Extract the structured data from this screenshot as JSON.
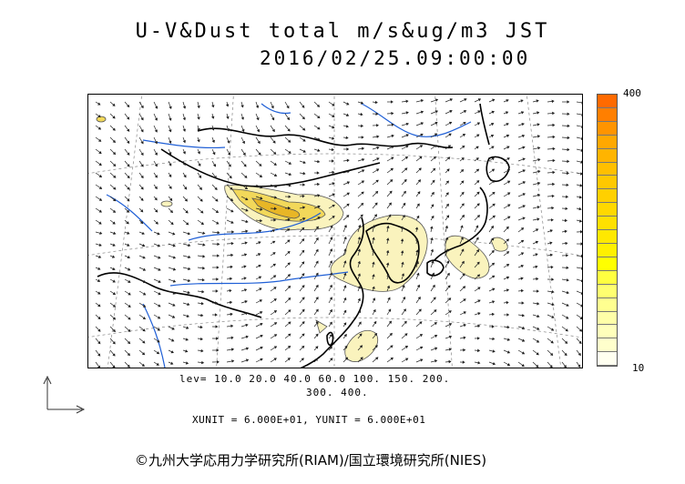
{
  "title": {
    "line1": "U-V&Dust total m/s&ug/m3 JST",
    "line2": "2016/02/25.09:00:00"
  },
  "colorbar": {
    "max_label": "400",
    "min_label": "10",
    "colors": [
      "#ff6a00",
      "#ff7f00",
      "#ff9400",
      "#ffa800",
      "#ffb400",
      "#ffbf00",
      "#ffc800",
      "#ffd000",
      "#ffd800",
      "#ffe000",
      "#ffe800",
      "#fff000",
      "#ffff00",
      "#ffff40",
      "#ffff70",
      "#ffff90",
      "#ffffa8",
      "#ffffbb",
      "#ffffcc",
      "#fffff0"
    ]
  },
  "contour_levels": {
    "line1": "lev= 10.0 20.0 40.0 60.0 100. 150. 200.",
    "line2": "300. 400."
  },
  "units": "XUNIT = 6.000E+01, YUNIT = 6.000E+01",
  "credit": "©九州大学応用力学研究所(RIAM)/国立環境研究所(NIES)",
  "style": {
    "dust_fill": "#faf3bd",
    "dust_core": "#f2d85a",
    "dust_hot": "#e8b626",
    "river": "#1f5fd6",
    "coast": "#000000"
  }
}
